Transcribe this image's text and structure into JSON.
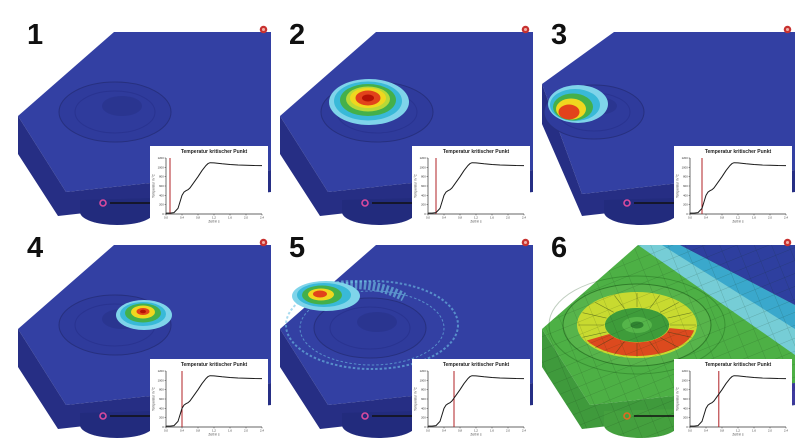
{
  "figure": {
    "background": "#ffffff",
    "panels": [
      {
        "number": "1",
        "marker_time_s": 0.1
      },
      {
        "number": "2",
        "marker_time_s": 0.2
      },
      {
        "number": "3",
        "marker_time_s": 0.3
      },
      {
        "number": "4",
        "marker_time_s": 0.4
      },
      {
        "number": "5",
        "marker_time_s": 0.65
      },
      {
        "number": "6",
        "marker_time_s": 0.72
      }
    ],
    "chart": {
      "title": "Temperatur kritischer Punkt",
      "xlabel": "Zeit in s",
      "ylabel": "Temperatur in °C",
      "x_ticks": [
        "0,0",
        "0,4",
        "0,8",
        "1,2",
        "1,6",
        "2,0",
        "2,4"
      ],
      "x_tick_values": [
        0,
        0.4,
        0.8,
        1.2,
        1.6,
        2.0,
        2.4
      ],
      "y_ticks": [
        "0",
        "200",
        "400",
        "600",
        "800",
        "1000",
        "1200"
      ],
      "y_tick_values": [
        0,
        200,
        400,
        600,
        800,
        1000,
        1200
      ],
      "line_color": "#1a1a1a",
      "marker_color": "#b02025"
    },
    "colors": {
      "plate_top": "#3340a3",
      "plate_front": "#262e84",
      "boss": "#2f3b9c",
      "heat_red": "#e2421b",
      "heat_dark_red": "#b51205",
      "heat_yellow": "#f0d71f",
      "heat_green": "#44b04a",
      "heat_cyan": "#39b9d8",
      "heat_light_blue": "#7fd4ea",
      "panel6_green": "#4db045",
      "panel6_yellow_ring": "#c8da30",
      "panel6_red_crescent": "#dc4a1e",
      "panel6_cyan_band": "#76cdd6",
      "panel6_blue": "#2e3f9f",
      "marker_pink": "#d84a9e",
      "marker_orange": "#e06a22",
      "badge_red": "#c83230",
      "arrow_black": "#111111",
      "number_black": "#101010"
    }
  },
  "chart_data": {
    "type": "line",
    "title": "Temperatur kritischer Punkt",
    "xlabel": "Zeit in s",
    "ylabel": "Temperatur in °C",
    "xlim": [
      0,
      2.4
    ],
    "ylim": [
      0,
      1200
    ],
    "x": [
      0,
      0.1,
      0.2,
      0.3,
      0.35,
      0.4,
      0.45,
      0.5,
      0.55,
      0.6,
      0.7,
      0.8,
      0.9,
      1.0,
      1.05,
      1.1,
      1.2,
      1.4,
      1.6,
      1.8,
      2.0,
      2.2,
      2.4
    ],
    "y": [
      20,
      20,
      30,
      120,
      260,
      400,
      470,
      500,
      520,
      560,
      680,
      800,
      930,
      1040,
      1080,
      1100,
      1095,
      1075,
      1060,
      1050,
      1045,
      1040,
      1038
    ],
    "marker_times_s": [
      0.1,
      0.2,
      0.3,
      0.4,
      0.65,
      0.72
    ],
    "legend": [],
    "grid": false
  }
}
